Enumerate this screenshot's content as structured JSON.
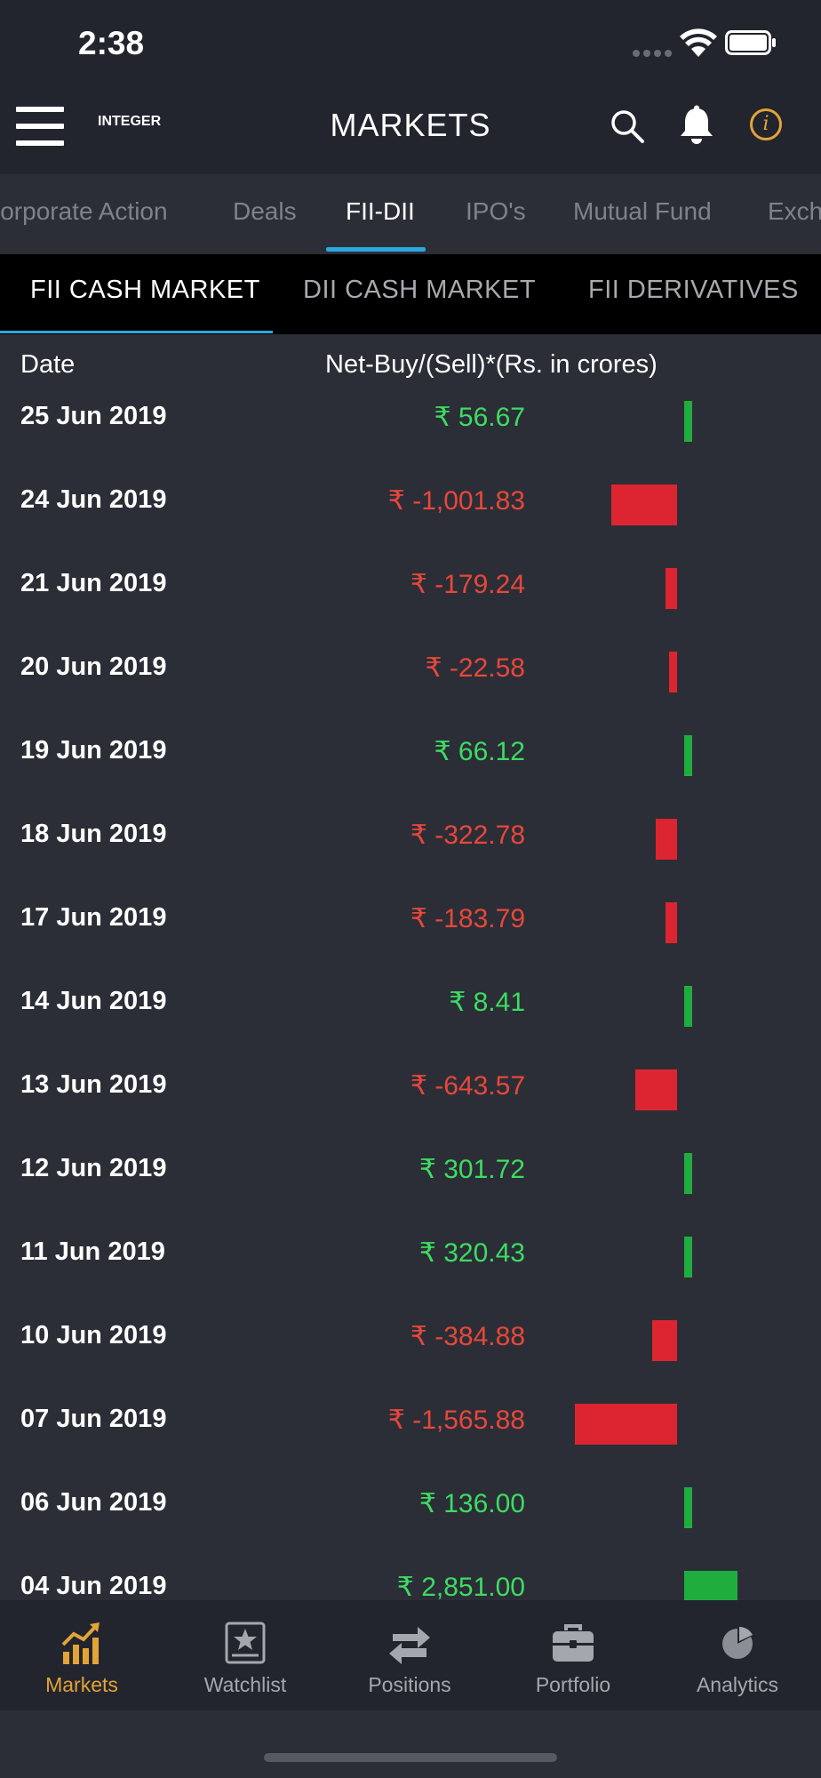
{
  "status_bar": {
    "time": "2:38"
  },
  "header": {
    "logo": "INTEGER",
    "title": "MARKETS"
  },
  "tabs": [
    {
      "label": "Corporate Action",
      "active": false
    },
    {
      "label": "Deals",
      "active": false
    },
    {
      "label": "FII-DII",
      "active": true
    },
    {
      "label": "IPO's",
      "active": false
    },
    {
      "label": "Mutual Fund",
      "active": false
    },
    {
      "label": "Exchange",
      "active": false
    }
  ],
  "subtabs": [
    {
      "label": "FII CASH MARKET",
      "active": true
    },
    {
      "label": "DII CASH MARKET",
      "active": false
    },
    {
      "label": "FII DERIVATIVES",
      "active": false
    }
  ],
  "table": {
    "col_date": "Date",
    "col_net": "Net-Buy/(Sell)*(Rs. in crores)",
    "rows": [
      {
        "date": "25 Jun 2019",
        "value_text": "₹ 56.67",
        "value": 56.67
      },
      {
        "date": "24 Jun 2019",
        "value_text": "₹ -1,001.83",
        "value": -1001.83
      },
      {
        "date": "21 Jun 2019",
        "value_text": "₹ -179.24",
        "value": -179.24
      },
      {
        "date": "20 Jun 2019",
        "value_text": "₹ -22.58",
        "value": -22.58
      },
      {
        "date": "19 Jun 2019",
        "value_text": "₹ 66.12",
        "value": 66.12
      },
      {
        "date": "18 Jun 2019",
        "value_text": "₹ -322.78",
        "value": -322.78
      },
      {
        "date": "17 Jun 2019",
        "value_text": "₹ -183.79",
        "value": -183.79
      },
      {
        "date": "14 Jun 2019",
        "value_text": "₹ 8.41",
        "value": 8.41
      },
      {
        "date": "13 Jun 2019",
        "value_text": "₹ -643.57",
        "value": -643.57
      },
      {
        "date": "12 Jun 2019",
        "value_text": "₹ 301.72",
        "value": 301.72
      },
      {
        "date": "11 Jun 2019",
        "value_text": "₹ 320.43",
        "value": 320.43
      },
      {
        "date": "10 Jun 2019",
        "value_text": "₹ -384.88",
        "value": -384.88
      },
      {
        "date": "07 Jun 2019",
        "value_text": "₹ -1,565.88",
        "value": -1565.88
      },
      {
        "date": "06 Jun 2019",
        "value_text": "₹ 136.00",
        "value": 136.0
      },
      {
        "date": "04 Jun 2019",
        "value_text": "₹ 2,851.00",
        "value": 2851.0
      }
    ]
  },
  "colors": {
    "positive": "#3ddc62",
    "negative": "#e8473a",
    "bar_positive": "#1fae3d",
    "bar_negative": "#dc2530",
    "accent": "#29a9e1",
    "nav_active": "#e3a338"
  },
  "bottom_nav": [
    {
      "label": "Markets",
      "icon": "markets-chart-icon",
      "active": true
    },
    {
      "label": "Watchlist",
      "icon": "watchlist-star-icon",
      "active": false
    },
    {
      "label": "Positions",
      "icon": "positions-arrows-icon",
      "active": false
    },
    {
      "label": "Portfolio",
      "icon": "portfolio-briefcase-icon",
      "active": false
    },
    {
      "label": "Analytics",
      "icon": "analytics-pie-icon",
      "active": false
    }
  ]
}
